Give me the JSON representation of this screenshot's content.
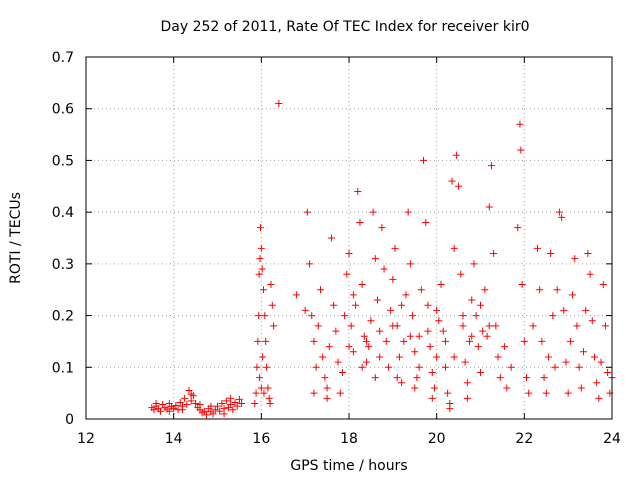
{
  "chart_data": {
    "type": "scatter",
    "title": "Day 252 of 2011, Rate Of TEC Index for receiver kir0",
    "xlabel": "GPS time / hours",
    "ylabel": "ROTI / TECUs",
    "xlim": [
      12,
      24
    ],
    "ylim": [
      0,
      0.7
    ],
    "xticks": [
      "12",
      "14",
      "16",
      "18",
      "20",
      "22",
      "24"
    ],
    "yticks": [
      "0",
      "0.1",
      "0.2",
      "0.3",
      "0.4",
      "0.5",
      "0.6",
      "0.7"
    ],
    "grid": true,
    "marker": "plus",
    "color": "#ff0000",
    "series": [
      {
        "points": [
          [
            13.5,
            0.022
          ],
          [
            13.55,
            0.018
          ],
          [
            13.6,
            0.025
          ],
          [
            13.65,
            0.02
          ],
          [
            13.7,
            0.015
          ],
          [
            13.75,
            0.028
          ],
          [
            13.8,
            0.022
          ],
          [
            13.85,
            0.019
          ],
          [
            13.9,
            0.03
          ],
          [
            13.95,
            0.024
          ],
          [
            14.0,
            0.02
          ],
          [
            14.05,
            0.026
          ],
          [
            14.1,
            0.018
          ],
          [
            14.15,
            0.032
          ],
          [
            14.2,
            0.025
          ],
          [
            14.25,
            0.04
          ],
          [
            14.3,
            0.028
          ],
          [
            14.35,
            0.055
          ],
          [
            14.4,
            0.035
          ],
          [
            14.45,
            0.045
          ],
          [
            14.5,
            0.03
          ],
          [
            14.55,
            0.022
          ],
          [
            14.6,
            0.018
          ],
          [
            14.65,
            0.012
          ],
          [
            14.7,
            0.015
          ],
          [
            14.75,
            0.008
          ],
          [
            14.8,
            0.02
          ],
          [
            14.85,
            0.014
          ],
          [
            14.9,
            0.01
          ],
          [
            14.95,
            0.018
          ],
          [
            15.0,
            0.025
          ],
          [
            15.05,
            0.015
          ],
          [
            15.1,
            0.03
          ],
          [
            15.15,
            0.02
          ],
          [
            15.2,
            0.035
          ],
          [
            15.25,
            0.022
          ],
          [
            15.3,
            0.028
          ],
          [
            15.35,
            0.018
          ],
          [
            15.4,
            0.032
          ],
          [
            15.45,
            0.025
          ],
          [
            15.5,
            0.038
          ],
          [
            15.55,
            0.03
          ],
          [
            13.6,
            0.03
          ],
          [
            13.9,
            0.015
          ],
          [
            14.2,
            0.018
          ],
          [
            14.6,
            0.028
          ],
          [
            14.85,
            0.025
          ],
          [
            15.15,
            0.01
          ],
          [
            15.3,
            0.04
          ],
          [
            14.4,
            0.048
          ],
          [
            15.85,
            0.03
          ],
          [
            15.88,
            0.05
          ],
          [
            15.9,
            0.1
          ],
          [
            15.92,
            0.15
          ],
          [
            15.94,
            0.2
          ],
          [
            15.95,
            0.28
          ],
          [
            15.97,
            0.31
          ],
          [
            15.98,
            0.37
          ],
          [
            16.0,
            0.33
          ],
          [
            16.02,
            0.29
          ],
          [
            16.05,
            0.25
          ],
          [
            16.08,
            0.2
          ],
          [
            16.1,
            0.15
          ],
          [
            16.12,
            0.1
          ],
          [
            16.15,
            0.06
          ],
          [
            16.18,
            0.04
          ],
          [
            16.2,
            0.03
          ],
          [
            16.22,
            0.26
          ],
          [
            16.25,
            0.22
          ],
          [
            16.28,
            0.18
          ],
          [
            15.96,
            0.08
          ],
          [
            16.0,
            0.06
          ],
          [
            16.03,
            0.12
          ],
          [
            16.06,
            0.05
          ],
          [
            16.4,
            0.61
          ],
          [
            16.8,
            0.24
          ],
          [
            17.0,
            0.21
          ],
          [
            17.05,
            0.4
          ],
          [
            17.1,
            0.3
          ],
          [
            17.15,
            0.2
          ],
          [
            17.2,
            0.15
          ],
          [
            17.25,
            0.1
          ],
          [
            17.3,
            0.18
          ],
          [
            17.35,
            0.25
          ],
          [
            17.4,
            0.12
          ],
          [
            17.45,
            0.08
          ],
          [
            17.5,
            0.06
          ],
          [
            17.55,
            0.14
          ],
          [
            17.6,
            0.35
          ],
          [
            17.65,
            0.22
          ],
          [
            17.7,
            0.17
          ],
          [
            17.75,
            0.11
          ],
          [
            17.8,
            0.05
          ],
          [
            17.85,
            0.09
          ],
          [
            17.9,
            0.2
          ],
          [
            17.95,
            0.28
          ],
          [
            18.0,
            0.32
          ],
          [
            18.05,
            0.18
          ],
          [
            18.1,
            0.13
          ],
          [
            18.15,
            0.22
          ],
          [
            18.2,
            0.44
          ],
          [
            18.25,
            0.38
          ],
          [
            18.3,
            0.26
          ],
          [
            18.35,
            0.16
          ],
          [
            18.4,
            0.11
          ],
          [
            18.45,
            0.14
          ],
          [
            18.5,
            0.19
          ],
          [
            18.55,
            0.4
          ],
          [
            18.6,
            0.31
          ],
          [
            18.65,
            0.23
          ],
          [
            18.7,
            0.17
          ],
          [
            18.75,
            0.37
          ],
          [
            18.8,
            0.29
          ],
          [
            18.85,
            0.15
          ],
          [
            18.9,
            0.1
          ],
          [
            18.95,
            0.21
          ],
          [
            19.0,
            0.27
          ],
          [
            19.05,
            0.33
          ],
          [
            19.1,
            0.18
          ],
          [
            19.15,
            0.12
          ],
          [
            19.2,
            0.07
          ],
          [
            19.25,
            0.15
          ],
          [
            19.3,
            0.24
          ],
          [
            19.35,
            0.4
          ],
          [
            19.4,
            0.3
          ],
          [
            19.45,
            0.2
          ],
          [
            19.5,
            0.13
          ],
          [
            19.55,
            0.08
          ],
          [
            19.6,
            0.16
          ],
          [
            19.65,
            0.25
          ],
          [
            19.7,
            0.5
          ],
          [
            19.75,
            0.38
          ],
          [
            19.8,
            0.22
          ],
          [
            19.85,
            0.14
          ],
          [
            19.9,
            0.09
          ],
          [
            19.95,
            0.06
          ],
          [
            20.0,
            0.12
          ],
          [
            20.05,
            0.19
          ],
          [
            20.1,
            0.26
          ],
          [
            20.15,
            0.17
          ],
          [
            20.2,
            0.1
          ],
          [
            20.25,
            0.05
          ],
          [
            20.3,
            0.02
          ],
          [
            20.35,
            0.46
          ],
          [
            20.4,
            0.33
          ],
          [
            20.45,
            0.51
          ],
          [
            20.5,
            0.45
          ],
          [
            20.55,
            0.28
          ],
          [
            20.6,
            0.18
          ],
          [
            20.65,
            0.11
          ],
          [
            20.7,
            0.07
          ],
          [
            20.75,
            0.15
          ],
          [
            20.8,
            0.23
          ],
          [
            20.85,
            0.3
          ],
          [
            20.9,
            0.2
          ],
          [
            20.95,
            0.14
          ],
          [
            21.0,
            0.09
          ],
          [
            21.05,
            0.17
          ],
          [
            21.1,
            0.25
          ],
          [
            21.15,
            0.16
          ],
          [
            21.2,
            0.41
          ],
          [
            21.25,
            0.49
          ],
          [
            21.3,
            0.32
          ],
          [
            21.35,
            0.18
          ],
          [
            21.4,
            0.12
          ],
          [
            21.45,
            0.08
          ],
          [
            21.55,
            0.14
          ],
          [
            21.6,
            0.06
          ],
          [
            21.7,
            0.1
          ],
          [
            21.85,
            0.37
          ],
          [
            21.9,
            0.57
          ],
          [
            21.92,
            0.52
          ],
          [
            21.95,
            0.26
          ],
          [
            22.0,
            0.15
          ],
          [
            22.05,
            0.08
          ],
          [
            22.1,
            0.05
          ],
          [
            22.2,
            0.18
          ],
          [
            22.3,
            0.33
          ],
          [
            22.35,
            0.25
          ],
          [
            22.4,
            0.15
          ],
          [
            22.45,
            0.08
          ],
          [
            22.5,
            0.05
          ],
          [
            22.55,
            0.12
          ],
          [
            22.6,
            0.32
          ],
          [
            22.65,
            0.2
          ],
          [
            22.7,
            0.1
          ],
          [
            22.75,
            0.25
          ],
          [
            22.8,
            0.4
          ],
          [
            22.85,
            0.39
          ],
          [
            22.9,
            0.21
          ],
          [
            22.95,
            0.11
          ],
          [
            23.0,
            0.05
          ],
          [
            23.05,
            0.15
          ],
          [
            23.1,
            0.24
          ],
          [
            23.15,
            0.31
          ],
          [
            23.2,
            0.18
          ],
          [
            23.25,
            0.1
          ],
          [
            23.3,
            0.06
          ],
          [
            23.35,
            0.13
          ],
          [
            23.4,
            0.21
          ],
          [
            23.45,
            0.32
          ],
          [
            23.5,
            0.28
          ],
          [
            23.55,
            0.19
          ],
          [
            23.6,
            0.12
          ],
          [
            23.65,
            0.07
          ],
          [
            23.7,
            0.04
          ],
          [
            23.75,
            0.11
          ],
          [
            23.8,
            0.26
          ],
          [
            23.85,
            0.18
          ],
          [
            23.9,
            0.09
          ],
          [
            23.95,
            0.05
          ],
          [
            24.0,
            0.08
          ],
          [
            18.1,
            0.24
          ],
          [
            18.4,
            0.15
          ],
          [
            18.7,
            0.12
          ],
          [
            19.0,
            0.18
          ],
          [
            19.2,
            0.22
          ],
          [
            19.4,
            0.16
          ],
          [
            19.6,
            0.1
          ],
          [
            19.8,
            0.17
          ],
          [
            20.0,
            0.21
          ],
          [
            20.2,
            0.15
          ],
          [
            20.4,
            0.12
          ],
          [
            20.6,
            0.2
          ],
          [
            20.8,
            0.16
          ],
          [
            21.0,
            0.22
          ],
          [
            21.2,
            0.18
          ],
          [
            19.1,
            0.08
          ],
          [
            19.5,
            0.06
          ],
          [
            19.9,
            0.04
          ],
          [
            20.3,
            0.03
          ],
          [
            20.7,
            0.04
          ],
          [
            17.2,
            0.05
          ],
          [
            17.5,
            0.04
          ],
          [
            18.0,
            0.14
          ],
          [
            18.3,
            0.1
          ],
          [
            18.6,
            0.08
          ]
        ]
      }
    ]
  }
}
